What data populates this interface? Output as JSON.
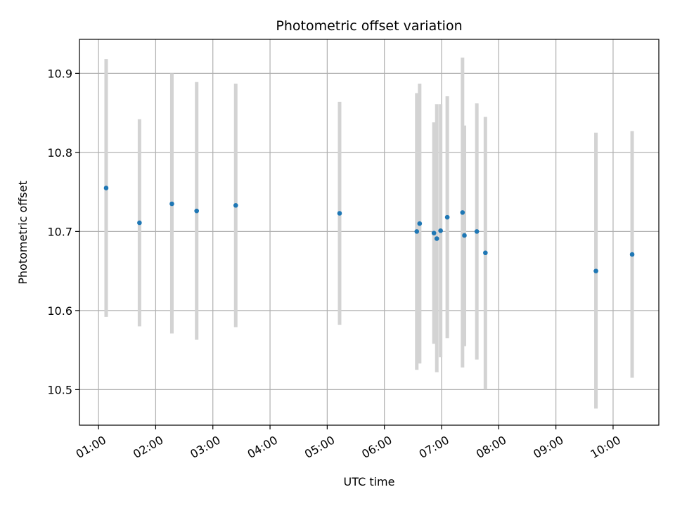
{
  "chart_data": {
    "type": "scatter",
    "title": "Photometric offset variation",
    "xlabel": "UTC time",
    "ylabel": "Photometric offset",
    "x_tick_labels": [
      "01:00",
      "02:00",
      "03:00",
      "04:00",
      "05:00",
      "06:00",
      "07:00",
      "08:00",
      "09:00",
      "10:00"
    ],
    "x_ticks_hours": [
      1,
      2,
      3,
      4,
      5,
      6,
      7,
      8,
      9,
      10
    ],
    "y_tick_labels": [
      "10.5",
      "10.6",
      "10.7",
      "10.8",
      "10.9"
    ],
    "y_ticks": [
      10.5,
      10.6,
      10.7,
      10.8,
      10.9
    ],
    "xlim": [
      "00:40",
      "10:48"
    ],
    "ylim": [
      10.455,
      10.943
    ],
    "grid": true,
    "point_color": "#1f77b4",
    "errorbar_color": "#d3d3d3",
    "points": [
      {
        "x": "01:08",
        "y": 10.755,
        "err_low": 10.592,
        "err_high": 10.918
      },
      {
        "x": "01:43",
        "y": 10.711,
        "err_low": 10.58,
        "err_high": 10.842
      },
      {
        "x": "02:17",
        "y": 10.735,
        "err_low": 10.571,
        "err_high": 10.9
      },
      {
        "x": "02:43",
        "y": 10.726,
        "err_low": 10.563,
        "err_high": 10.889
      },
      {
        "x": "03:24",
        "y": 10.733,
        "err_low": 10.579,
        "err_high": 10.887
      },
      {
        "x": "05:13",
        "y": 10.723,
        "err_low": 10.582,
        "err_high": 10.864
      },
      {
        "x": "06:34",
        "y": 10.7,
        "err_low": 10.525,
        "err_high": 10.875
      },
      {
        "x": "06:37",
        "y": 10.71,
        "err_low": 10.533,
        "err_high": 10.887
      },
      {
        "x": "06:52",
        "y": 10.698,
        "err_low": 10.558,
        "err_high": 10.838
      },
      {
        "x": "06:55",
        "y": 10.691,
        "err_low": 10.522,
        "err_high": 10.861
      },
      {
        "x": "06:59",
        "y": 10.701,
        "err_low": 10.541,
        "err_high": 10.861
      },
      {
        "x": "07:06",
        "y": 10.718,
        "err_low": 10.565,
        "err_high": 10.871
      },
      {
        "x": "07:22",
        "y": 10.724,
        "err_low": 10.528,
        "err_high": 10.92
      },
      {
        "x": "07:24",
        "y": 10.695,
        "err_low": 10.555,
        "err_high": 10.834
      },
      {
        "x": "07:37",
        "y": 10.7,
        "err_low": 10.538,
        "err_high": 10.862
      },
      {
        "x": "07:46",
        "y": 10.673,
        "err_low": 10.5,
        "err_high": 10.845
      },
      {
        "x": "09:42",
        "y": 10.65,
        "err_low": 10.476,
        "err_high": 10.825
      },
      {
        "x": "10:20",
        "y": 10.671,
        "err_low": 10.515,
        "err_high": 10.827
      }
    ]
  }
}
